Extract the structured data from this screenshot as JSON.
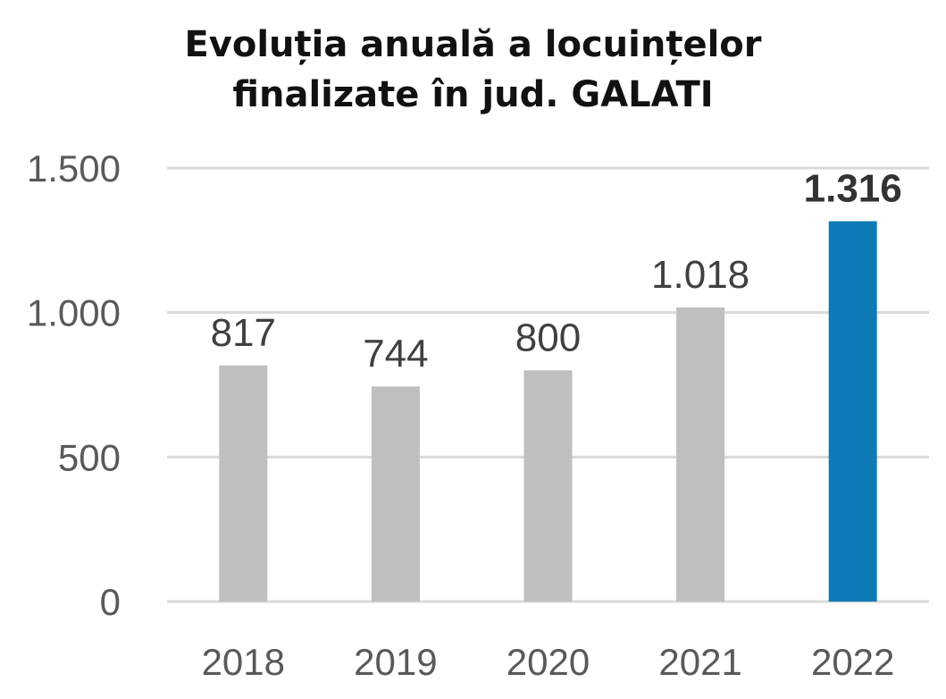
{
  "chart_data": {
    "type": "bar",
    "title_line1": "Evoluția anuală a locuințelor",
    "title_line2": "finalizate în jud. GALATI",
    "categories": [
      "2018",
      "2019",
      "2020",
      "2021",
      "2022"
    ],
    "values": [
      817,
      744,
      800,
      1018,
      1316
    ],
    "value_labels": [
      "817",
      "744",
      "800",
      "1.018",
      "1.316"
    ],
    "ylim": [
      0,
      1500
    ],
    "yticks": [
      0,
      500,
      1000,
      1500
    ],
    "ytick_labels": [
      "0",
      "500",
      "1.000",
      "1.500"
    ],
    "grid": true,
    "highlight_index": 4,
    "colors": {
      "bar": "#BFBFBF",
      "highlight": "#0F7AB8",
      "grid": "#D9D9D9"
    }
  }
}
